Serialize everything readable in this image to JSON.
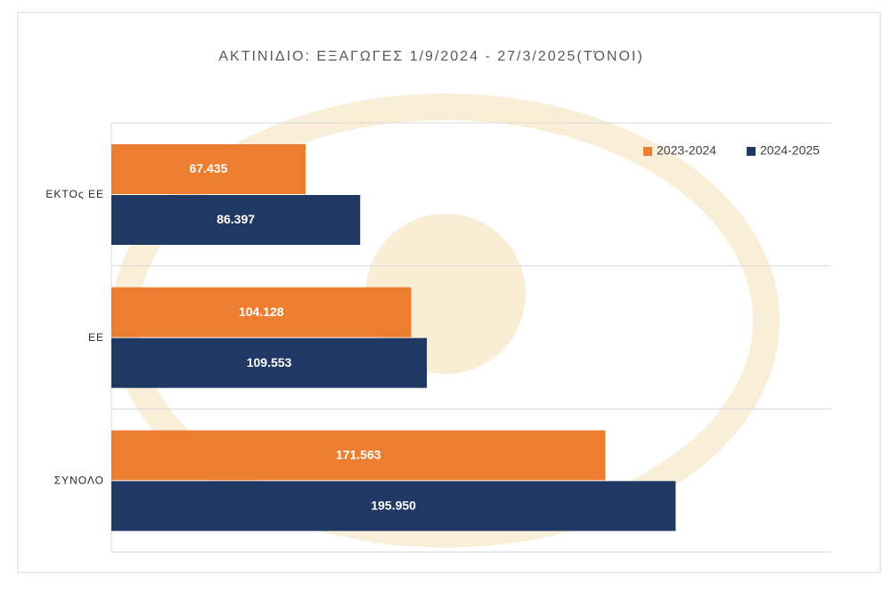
{
  "chart_data": {
    "type": "hbar",
    "title": "ΑΚΤΙΝΙΔΙΟ: ΕΞΑΓΩΓΕΣ 1/9/2024 - 27/3/2025(ΤΌΝΟΙ)",
    "categories": [
      "ΕΚΤΟς ΕΕ",
      "ΕΕ",
      "ΣΥΝΟΛΟ"
    ],
    "series": [
      {
        "name": "2023-2024",
        "color": "#ED7D31",
        "values": [
          67435,
          104128,
          171563
        ],
        "value_labels": [
          "67.435",
          "104.128",
          "171.563"
        ]
      },
      {
        "name": "2024-2025",
        "color": "#203864",
        "values": [
          86397,
          109553,
          195950
        ],
        "value_labels": [
          "86.397",
          "109.553",
          "195.950"
        ]
      }
    ],
    "xlim": [
      0,
      250000
    ],
    "legend": "top-right"
  }
}
